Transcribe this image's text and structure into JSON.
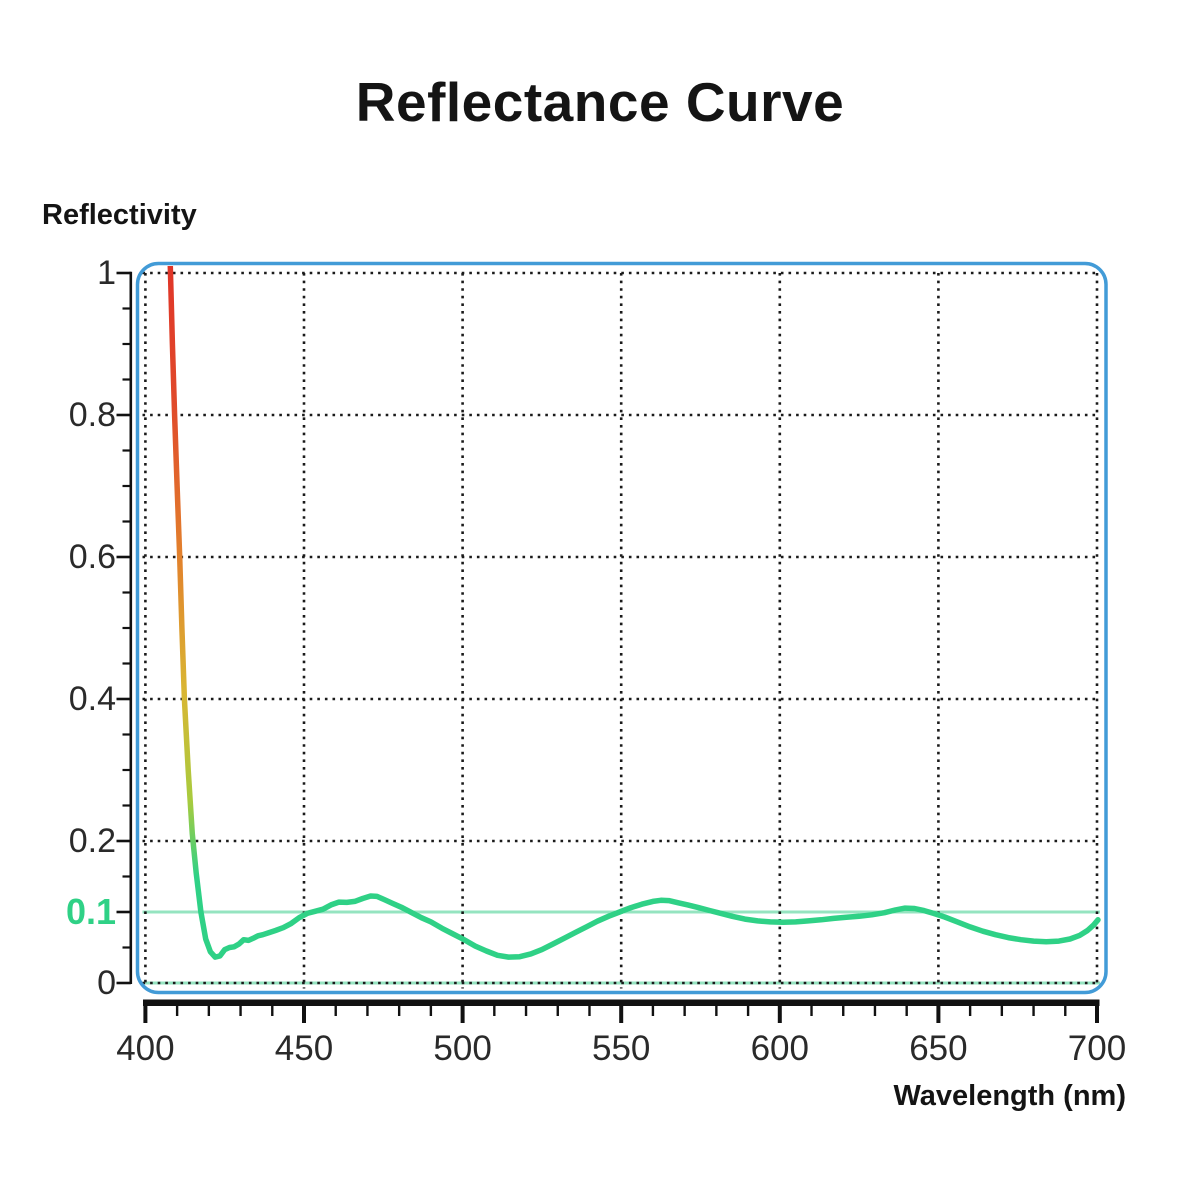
{
  "page": {
    "background": "#ffffff"
  },
  "chart_data": {
    "type": "line",
    "title": "Reflectance Curve",
    "xlabel": "Wavelength (nm)",
    "ylabel": "Reflectivity",
    "xlim": [
      400,
      700
    ],
    "ylim": [
      0,
      1
    ],
    "grid": "dotted",
    "legend": "none",
    "x_ticks_major": [
      400,
      450,
      500,
      550,
      600,
      650,
      700
    ],
    "x_minor_step": 10,
    "y_minor_step": 0.05,
    "y_ticks_major": [
      {
        "value": 0,
        "label": "0",
        "highlight": false
      },
      {
        "value": 0.1,
        "label": "0.1",
        "highlight": true
      },
      {
        "value": 0.2,
        "label": "0.2",
        "highlight": false
      },
      {
        "value": 0.4,
        "label": "0.4",
        "highlight": false
      },
      {
        "value": 0.6,
        "label": "0.6",
        "highlight": false
      },
      {
        "value": 0.8,
        "label": "0.8",
        "highlight": false
      },
      {
        "value": 1,
        "label": "1",
        "highlight": false
      }
    ],
    "reference_line": {
      "value": 0.1,
      "label": "0.1"
    },
    "baseline_value": 0,
    "colors": {
      "curve_gradient": [
        "#e03428",
        "#e04a2b",
        "#e2802c",
        "#d9b633",
        "#a8cb3e",
        "#2fd186"
      ],
      "curve_green": "#2fd186",
      "reference_line": "#95e4c0",
      "baseline": "#95e4c0",
      "border": "#429bd7",
      "grid": "#1a1a1a",
      "axis": "#111111",
      "highlight_label": "#2fd186",
      "text": "#141414"
    },
    "series": [
      {
        "name": "reflectance",
        "points": [
          [
            407.8,
            1.02
          ],
          [
            408.5,
            0.9
          ],
          [
            409.2,
            0.8
          ],
          [
            410.0,
            0.7
          ],
          [
            410.8,
            0.6
          ],
          [
            411.5,
            0.5
          ],
          [
            412.3,
            0.4
          ],
          [
            413.5,
            0.3
          ],
          [
            414.8,
            0.21
          ],
          [
            416.0,
            0.155
          ],
          [
            417.5,
            0.1
          ],
          [
            419.0,
            0.062
          ],
          [
            420.5,
            0.044
          ],
          [
            422.0,
            0.0365
          ],
          [
            423.5,
            0.038
          ],
          [
            425.0,
            0.047
          ],
          [
            426.5,
            0.05
          ],
          [
            428.0,
            0.051
          ],
          [
            429.5,
            0.055
          ],
          [
            431.0,
            0.061
          ],
          [
            432.5,
            0.06
          ],
          [
            434.0,
            0.063
          ],
          [
            435.5,
            0.0665
          ],
          [
            437.0,
            0.068
          ],
          [
            439.0,
            0.071
          ],
          [
            441.0,
            0.074
          ],
          [
            443.5,
            0.078
          ],
          [
            446.0,
            0.084
          ],
          [
            448.5,
            0.092
          ],
          [
            451.0,
            0.098
          ],
          [
            453.5,
            0.101
          ],
          [
            456.0,
            0.104
          ],
          [
            458.5,
            0.11
          ],
          [
            461.0,
            0.114
          ],
          [
            463.5,
            0.1135
          ],
          [
            466.0,
            0.115
          ],
          [
            468.5,
            0.119
          ],
          [
            471.0,
            0.1225
          ],
          [
            473.0,
            0.122
          ],
          [
            475.5,
            0.117
          ],
          [
            478.0,
            0.112
          ],
          [
            481.0,
            0.106
          ],
          [
            484.0,
            0.099
          ],
          [
            487.0,
            0.092
          ],
          [
            490.0,
            0.086
          ],
          [
            493.5,
            0.077
          ],
          [
            497.0,
            0.069
          ],
          [
            500.5,
            0.061
          ],
          [
            504.0,
            0.052
          ],
          [
            507.5,
            0.045
          ],
          [
            511.0,
            0.039
          ],
          [
            514.5,
            0.0365
          ],
          [
            518.0,
            0.037
          ],
          [
            521.5,
            0.041
          ],
          [
            525.0,
            0.047
          ],
          [
            528.5,
            0.055
          ],
          [
            532.0,
            0.063
          ],
          [
            535.5,
            0.071
          ],
          [
            539.0,
            0.079
          ],
          [
            542.5,
            0.087
          ],
          [
            546.0,
            0.094
          ],
          [
            549.5,
            0.1
          ],
          [
            553.0,
            0.106
          ],
          [
            556.5,
            0.111
          ],
          [
            560.0,
            0.115
          ],
          [
            562.5,
            0.1165
          ],
          [
            565.0,
            0.116
          ],
          [
            568.0,
            0.113
          ],
          [
            571.0,
            0.11
          ],
          [
            574.5,
            0.106
          ],
          [
            578.0,
            0.102
          ],
          [
            581.5,
            0.098
          ],
          [
            585.0,
            0.094
          ],
          [
            589.0,
            0.09
          ],
          [
            593.0,
            0.0875
          ],
          [
            597.0,
            0.086
          ],
          [
            601.0,
            0.0855
          ],
          [
            605.0,
            0.086
          ],
          [
            609.0,
            0.0875
          ],
          [
            613.0,
            0.089
          ],
          [
            617.0,
            0.091
          ],
          [
            621.0,
            0.0925
          ],
          [
            625.0,
            0.094
          ],
          [
            629.0,
            0.096
          ],
          [
            633.0,
            0.099
          ],
          [
            636.5,
            0.103
          ],
          [
            639.5,
            0.1055
          ],
          [
            642.5,
            0.105
          ],
          [
            645.5,
            0.102
          ],
          [
            648.5,
            0.098
          ],
          [
            652.0,
            0.093
          ],
          [
            656.0,
            0.086
          ],
          [
            660.0,
            0.079
          ],
          [
            664.0,
            0.073
          ],
          [
            668.0,
            0.068
          ],
          [
            672.0,
            0.064
          ],
          [
            676.0,
            0.061
          ],
          [
            680.0,
            0.059
          ],
          [
            684.0,
            0.058
          ],
          [
            688.0,
            0.059
          ],
          [
            691.5,
            0.062
          ],
          [
            694.5,
            0.067
          ],
          [
            697.0,
            0.074
          ],
          [
            699.0,
            0.082
          ],
          [
            700.3,
            0.089
          ]
        ]
      }
    ]
  }
}
